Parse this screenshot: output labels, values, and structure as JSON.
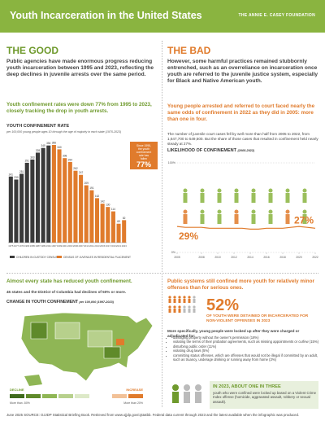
{
  "header": {
    "title": "Youth Incarceration in the United States",
    "logo": "THE ANNIE E. CASEY FOUNDATION"
  },
  "good": {
    "heading": "THE GOOD",
    "intro": "Public agencies have made enormous progress reducing youth incarceration between 1995 and 2023, reflecting the deep declines in juvenile arrests over the same period.",
    "subheading": "Youth confinement rates were down 77% from 1995 to 2023, closely tracking the drop in youth arrests."
  },
  "bad": {
    "heading": "THE BAD",
    "intro": "However, some harmful practices remained stubbornly entrenched, such as an overreliance on incarceration once youth are referred to the juvenile justice system, especially for Black and Native American youth.",
    "subheading": "Young people arrested and referred to court faced nearly the same odds of confinement in 2022 as they did in 2005: more than one in four.",
    "text": "The number of juvenile court cases fell by well more than half from 2005 to 2022, from 1,647,700 to 549,500. But the share of those cases that resulted in confinement held nearly steady at 27%."
  },
  "states": {
    "heading": "Almost every state has reduced youth confinement.",
    "text": "45 states and the District of Columbia had declines of 50% or more.",
    "map_title": "CHANGE IN YOUTH CONFINEMENT",
    "map_subtitle": "per 100,000 (1997-2023)",
    "legend_left": "DECLINE",
    "legend_right": "INCREASE",
    "legend_low": "More than -50%",
    "legend_high": "More than 20%"
  },
  "offenses": {
    "heading": "Public systems still confined more youth for relatively minor offenses than for serious ones.",
    "big_number": "52%",
    "big_text": "OF YOUTH WERE DETAINED OR INCARCERATED FOR NON-VIOLENT OFFENSES IN 2023",
    "lead": "More specifically, young people were locked up after they were charged or adjudicated for:",
    "bullets": [
      "damaging property without the owner's permission (18%)",
      "violating the terms of their probation agreements, such as missing appointments or curfew (15%)",
      "disturbing public order (11%)",
      "violating drug laws (5%)",
      "committing status offenses, which are offenses that would not be illegal if committed by an adult, such as truancy, underage drinking or running away from home (3%)"
    ],
    "box_heading": "IN 2023, ABOUT ONE IN THREE",
    "box_text": "youth who were confined were locked up based on a Violent Crime Index offense (homicide, aggravated assault, robbery or sexual assault)."
  },
  "footer": "June 2025 SOURCE: OJJDP Statistical Briefing Book. Retrieved from www.ojjdp.gov/ojstatbb. Federal data current through 2023 and the latest available when the infographic was produced.",
  "chart_data": [
    {
      "type": "bar",
      "title": "YOUTH CONFINEMENT RATE",
      "subtitle": "per 100,000 young people ages 10 through the age of majority in each state (1975-2023)",
      "callout": "Since 1995, the youth confinement rate has fallen",
      "callout_value": "77%",
      "categories": [
        "1975",
        "1977",
        "1979",
        "1983",
        "1985",
        "1987",
        "1989",
        "1991",
        "1997",
        "1999",
        "2001",
        "2003",
        "2006",
        "2007",
        "2010",
        "2011",
        "2013",
        "2015",
        "2017",
        "2019",
        "2021",
        "2023"
      ],
      "series": [
        {
          "name": "CHILDREN IN CUSTODY CENSUS",
          "color": "#3a3a3a",
          "values": [
            241,
            230,
            251,
            291,
            303,
            328,
            345,
            354,
            null,
            null,
            null,
            null,
            null,
            null,
            null,
            null,
            null,
            null,
            null,
            null,
            null,
            null
          ]
        },
        {
          "name": "CENSUS OF JUVENILES IN RESIDENTIAL PLACEMENT",
          "color": "#e07b2c",
          "values": [
            null,
            null,
            null,
            null,
            null,
            null,
            null,
            null,
            356,
            340,
            308,
            294,
            262,
            247,
            209,
            191,
            162,
            142,
            130,
            114,
            69,
            82
          ]
        }
      ]
    },
    {
      "type": "line",
      "title": "LIKELIHOOD OF CONFINEMENT",
      "subtitle": "(2005-2022)",
      "x": [
        2005,
        2006,
        2007,
        2008,
        2009,
        2010,
        2011,
        2012,
        2013,
        2014,
        2015,
        2016,
        2017,
        2018,
        2019,
        2020,
        2021,
        2022
      ],
      "series": [
        {
          "name": "Likelihood of confinement",
          "color": "#e07b2c",
          "values": [
            29,
            28,
            28,
            28,
            27,
            27,
            27,
            27,
            27,
            26,
            26,
            27,
            27,
            27,
            28,
            29,
            28,
            27
          ]
        }
      ],
      "start_label": "29%",
      "end_label": "27%",
      "xlim": [
        2005,
        2022
      ],
      "xticks": [
        2005,
        2008,
        2010,
        2012,
        2014,
        2016,
        2018,
        2020,
        2022
      ],
      "ylim": [
        0,
        100
      ],
      "yticks": [
        {
          "value": 0,
          "label": "0%"
        },
        {
          "value": 100,
          "label": "100%"
        }
      ],
      "grid": true
    }
  ]
}
